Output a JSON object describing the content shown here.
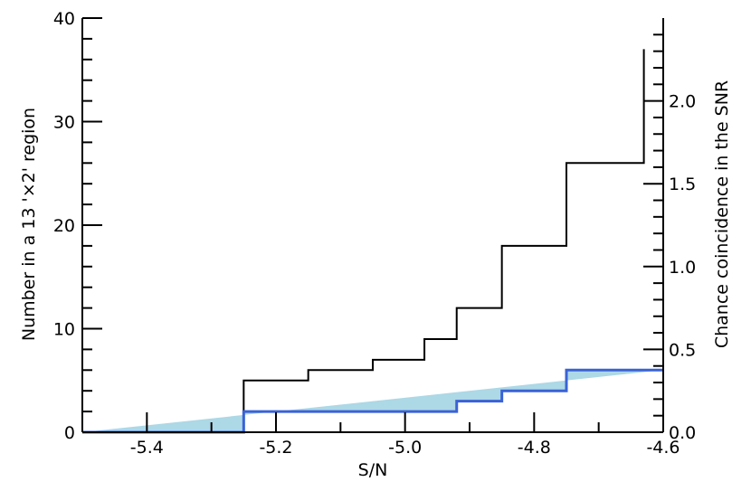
{
  "chart_data": {
    "type": "histogram",
    "xlabel": "S/N",
    "ylabel_left": "Number in a 13 '×2' region",
    "ylabel_right": "Chance coincidence in the SNR",
    "xlim": [
      -5.5,
      -4.6
    ],
    "ylim_left": [
      0,
      40
    ],
    "ylim_right": [
      0,
      2.5
    ],
    "x_ticks": [
      -5.4,
      -5.2,
      -5.0,
      -4.8,
      -4.6
    ],
    "x_tick_labels": [
      "-5.4",
      "-5.2",
      "-5.0",
      "-4.8",
      "-4.6"
    ],
    "y_left_ticks": [
      0,
      10,
      20,
      30,
      40
    ],
    "y_left_tick_labels": [
      "0",
      "10",
      "20",
      "30",
      "40"
    ],
    "y_right_ticks": [
      0.0,
      0.5,
      1.0,
      1.5,
      2.0
    ],
    "y_right_tick_labels": [
      "0.0",
      "0.5",
      "1.0",
      "1.5",
      "2.0"
    ],
    "series": [
      {
        "axis": "left",
        "style": "step",
        "color": "#000000",
        "edges": [
          -5.5,
          -5.25,
          -5.15,
          -5.05,
          -4.97,
          -4.92,
          -4.85,
          -4.75,
          -4.63
        ],
        "values": [
          0,
          5,
          6,
          7,
          9,
          12,
          18,
          26,
          37
        ]
      },
      {
        "axis": "left",
        "style": "filled-step",
        "color": "#3a62d6",
        "fill": "#add8e6",
        "edges": [
          -5.5,
          -5.25,
          -5.15,
          -5.05,
          -4.97,
          -4.92,
          -4.85,
          -4.75,
          -4.6
        ],
        "values": [
          0,
          2,
          2,
          2,
          2,
          3,
          4,
          6,
          6
        ]
      }
    ]
  }
}
